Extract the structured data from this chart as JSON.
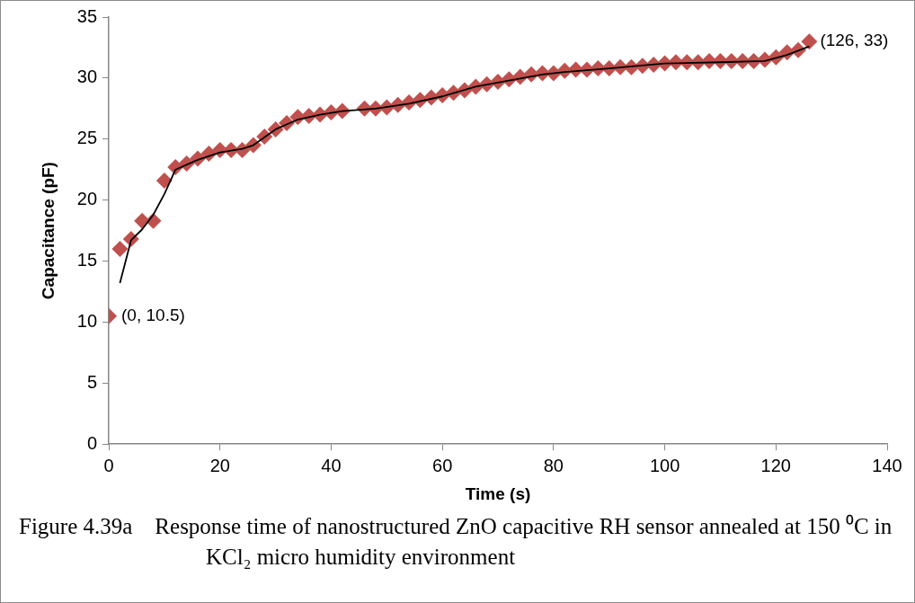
{
  "chart_data": {
    "type": "scatter",
    "title": "Figure 4.39a\tResponse time of nanostructured ZnO capacitive RH sensor annealed at 150 ⁰C in KCl₂ micro humidity environment",
    "xlabel": "Time (s)",
    "ylabel": "Capacitance (pF)",
    "xlim": [
      0,
      140
    ],
    "xticks": [
      0,
      20,
      40,
      60,
      80,
      100,
      120,
      140
    ],
    "ylim": [
      0,
      35
    ],
    "yticks": [
      0,
      5,
      10,
      15,
      20,
      25,
      30,
      35
    ],
    "grid": false,
    "legend": false,
    "marker": "diamond",
    "series": [
      {
        "type": "scatter",
        "color": "#c0504d",
        "x": [
          0,
          2,
          4,
          6,
          8,
          10,
          12,
          14,
          16,
          18,
          20,
          22,
          24,
          26,
          28,
          30,
          32,
          34,
          36,
          38,
          40,
          42,
          46,
          48,
          50,
          52,
          54,
          56,
          58,
          60,
          62,
          64,
          66,
          68,
          70,
          72,
          74,
          76,
          78,
          80,
          82,
          84,
          86,
          88,
          90,
          92,
          94,
          96,
          98,
          100,
          102,
          104,
          106,
          108,
          110,
          112,
          114,
          116,
          118,
          120,
          122,
          124,
          126
        ],
        "values": [
          10.5,
          16.0,
          16.8,
          18.3,
          18.3,
          21.6,
          22.7,
          23.0,
          23.4,
          23.8,
          24.1,
          24.1,
          24.1,
          24.5,
          25.2,
          25.8,
          26.3,
          26.8,
          26.9,
          27.0,
          27.2,
          27.3,
          27.5,
          27.5,
          27.6,
          27.8,
          28.0,
          28.2,
          28.4,
          28.6,
          28.8,
          29.0,
          29.3,
          29.5,
          29.7,
          29.9,
          30.1,
          30.3,
          30.4,
          30.4,
          30.6,
          30.7,
          30.7,
          30.8,
          30.8,
          30.9,
          30.9,
          31.0,
          31.1,
          31.2,
          31.3,
          31.3,
          31.3,
          31.4,
          31.4,
          31.4,
          31.4,
          31.4,
          31.5,
          31.7,
          32.1,
          32.3,
          33.0
        ]
      },
      {
        "type": "line",
        "color": "#000000",
        "marker": "none",
        "line_style": "solid",
        "x": [
          2,
          4,
          6,
          8,
          10,
          12,
          16,
          20,
          24,
          26,
          30,
          34,
          38,
          42,
          48,
          54,
          60,
          66,
          72,
          78,
          82,
          90,
          100,
          110,
          118,
          122,
          126
        ],
        "values": [
          13.2,
          16.7,
          17.6,
          18.8,
          20.5,
          22.5,
          23.3,
          23.9,
          24.2,
          24.5,
          25.8,
          26.6,
          27.0,
          27.3,
          27.5,
          27.9,
          28.5,
          29.3,
          29.8,
          30.3,
          30.5,
          30.8,
          31.2,
          31.3,
          31.4,
          31.9,
          32.6
        ]
      }
    ],
    "annotations": [
      {
        "text": "(0, 10.5)",
        "x": 0,
        "y": 10.5
      },
      {
        "text": "(126, 33)",
        "x": 126,
        "y": 33
      }
    ]
  }
}
